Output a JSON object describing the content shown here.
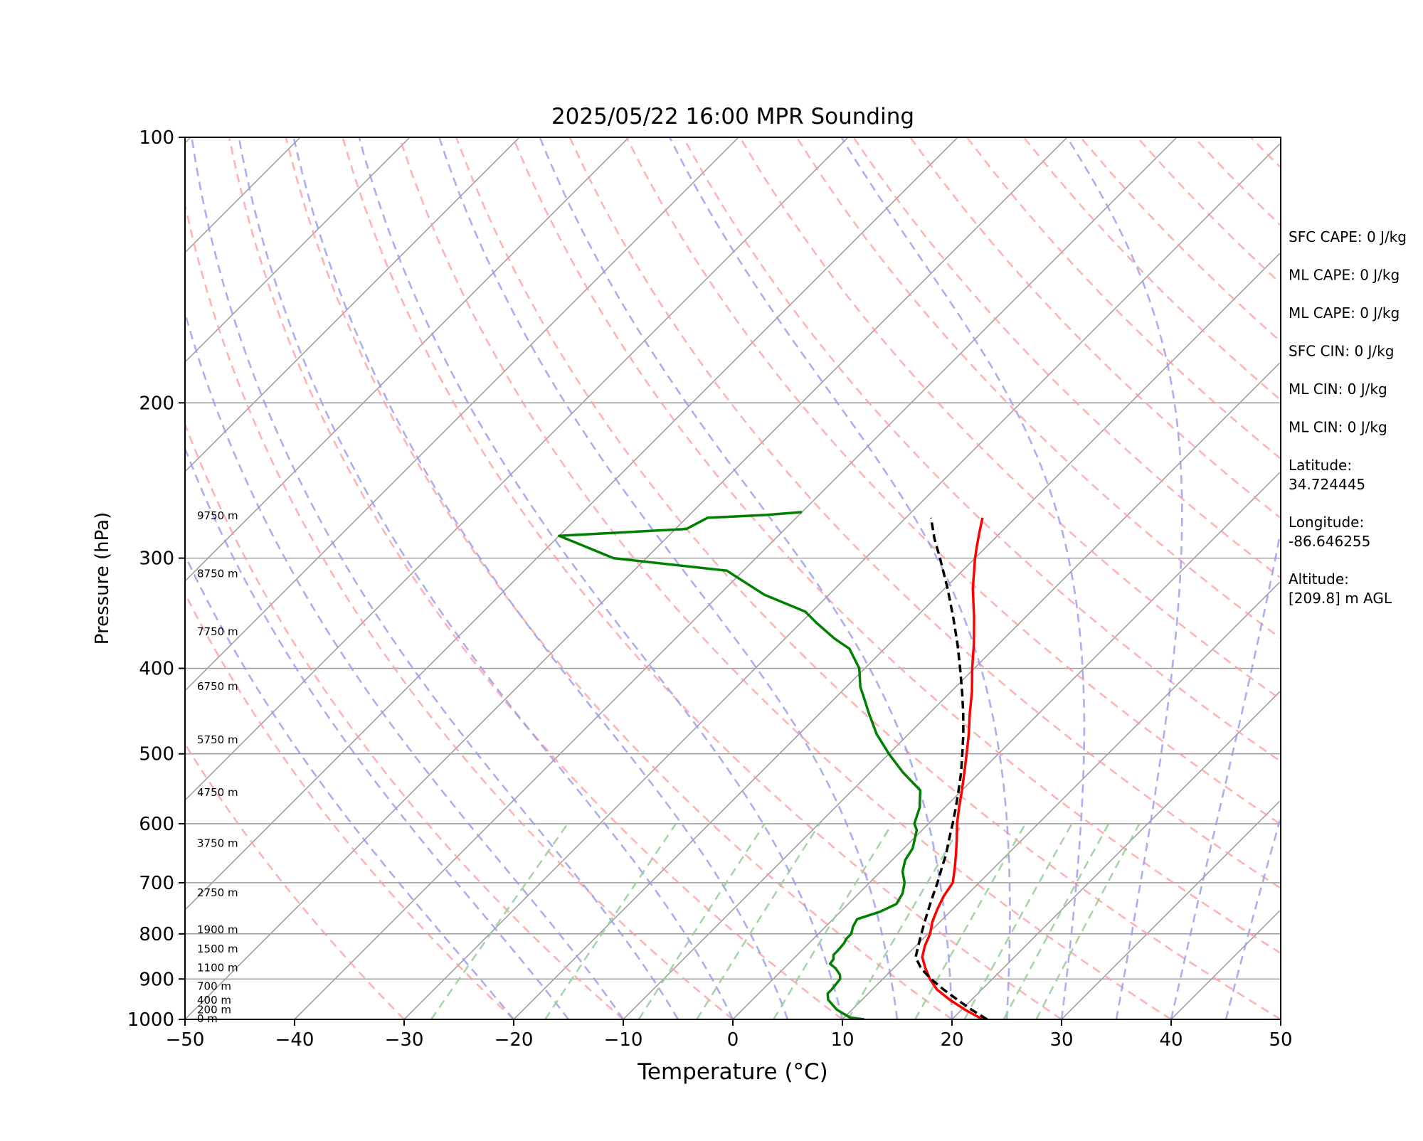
{
  "chart_data": {
    "type": "line",
    "title": "2025/05/22 16:00 MPR Sounding",
    "xlabel": "Temperature (°C)",
    "ylabel": "Pressure (hPa)",
    "xlim": [
      -50,
      50
    ],
    "ylim": [
      1000,
      100
    ],
    "yscale": "log",
    "skew": true,
    "x_ticks": [
      -50,
      -40,
      -30,
      -20,
      -10,
      0,
      10,
      20,
      30,
      40,
      50
    ],
    "y_ticks": [
      1000,
      900,
      800,
      700,
      600,
      500,
      400,
      300,
      200,
      100
    ],
    "x_tick_labels": [
      "−50",
      "−40",
      "−30",
      "−20",
      "−10",
      "0",
      "10",
      "20",
      "30",
      "40",
      "50"
    ],
    "y_tick_labels": [
      "1000",
      "900",
      "800",
      "700",
      "600",
      "500",
      "400",
      "300",
      "200",
      "100"
    ],
    "grid": true,
    "colors": {
      "temperature": "#ff0000",
      "dewpoint": "#008000",
      "parcel": "#000000",
      "dry_adiabats": "#ff9999",
      "moist_adiabats": "#9999ee",
      "mixing_ratio": "#99cc99",
      "isotherms": "#a0a0a0"
    },
    "series": [
      {
        "key": "temperature",
        "style": "solid",
        "points": [
          [
            1000,
            22.8
          ],
          [
            975,
            20.3
          ],
          [
            950,
            18.0
          ],
          [
            925,
            15.9
          ],
          [
            900,
            14.3
          ],
          [
            875,
            12.9
          ],
          [
            850,
            11.6
          ],
          [
            825,
            10.8
          ],
          [
            800,
            10.2
          ],
          [
            775,
            9.3
          ],
          [
            750,
            8.6
          ],
          [
            725,
            8.0
          ],
          [
            700,
            7.6
          ],
          [
            675,
            6.5
          ],
          [
            650,
            5.3
          ],
          [
            625,
            4.0
          ],
          [
            600,
            2.6
          ],
          [
            575,
            1.3
          ],
          [
            550,
            0.0
          ],
          [
            525,
            -1.4
          ],
          [
            500,
            -2.9
          ],
          [
            475,
            -4.5
          ],
          [
            450,
            -6.3
          ],
          [
            425,
            -8.1
          ],
          [
            400,
            -10.2
          ],
          [
            375,
            -12.3
          ],
          [
            350,
            -14.7
          ],
          [
            325,
            -17.4
          ],
          [
            300,
            -20.0
          ],
          [
            290,
            -21.0
          ],
          [
            280,
            -22.0
          ],
          [
            270,
            -23.0
          ]
        ]
      },
      {
        "key": "dewpoint",
        "style": "solid",
        "points": [
          [
            1000,
            12.0
          ],
          [
            995,
            10.5
          ],
          [
            975,
            8.6
          ],
          [
            950,
            6.9
          ],
          [
            935,
            6.3
          ],
          [
            925,
            6.3
          ],
          [
            900,
            6.1
          ],
          [
            890,
            5.7
          ],
          [
            875,
            4.7
          ],
          [
            865,
            3.8
          ],
          [
            855,
            3.7
          ],
          [
            845,
            3.3
          ],
          [
            835,
            3.3
          ],
          [
            820,
            3.2
          ],
          [
            810,
            3.0
          ],
          [
            800,
            3.0
          ],
          [
            785,
            2.5
          ],
          [
            770,
            2.2
          ],
          [
            755,
            3.6
          ],
          [
            740,
            4.4
          ],
          [
            720,
            4.0
          ],
          [
            700,
            3.2
          ],
          [
            680,
            2.0
          ],
          [
            660,
            1.2
          ],
          [
            640,
            0.8
          ],
          [
            610,
            -0.5
          ],
          [
            600,
            -1.3
          ],
          [
            575,
            -2.3
          ],
          [
            550,
            -3.8
          ],
          [
            525,
            -7.0
          ],
          [
            500,
            -10.0
          ],
          [
            475,
            -12.9
          ],
          [
            450,
            -15.5
          ],
          [
            430,
            -17.6
          ],
          [
            420,
            -18.7
          ],
          [
            400,
            -20.5
          ],
          [
            380,
            -23.2
          ],
          [
            370,
            -25.5
          ],
          [
            355,
            -28.6
          ],
          [
            345,
            -30.6
          ],
          [
            330,
            -35.9
          ],
          [
            310,
            -41.5
          ],
          [
            300,
            -53.0
          ],
          [
            283,
            -60.0
          ],
          [
            278,
            -49.0
          ],
          [
            270,
            -48.1
          ],
          [
            268,
            -43.0
          ],
          [
            266,
            -40.0
          ]
        ]
      },
      {
        "key": "parcel",
        "style": "dashed",
        "points": [
          [
            1000,
            23.2
          ],
          [
            975,
            20.9
          ],
          [
            950,
            18.7
          ],
          [
            925,
            16.5
          ],
          [
            900,
            14.4
          ],
          [
            875,
            12.5
          ],
          [
            850,
            11.0
          ],
          [
            825,
            10.2
          ],
          [
            800,
            9.4
          ],
          [
            775,
            8.6
          ],
          [
            750,
            7.8
          ],
          [
            725,
            7.0
          ],
          [
            700,
            6.2
          ],
          [
            675,
            5.3
          ],
          [
            650,
            4.4
          ],
          [
            625,
            3.3
          ],
          [
            600,
            2.2
          ],
          [
            575,
            1.0
          ],
          [
            550,
            -0.3
          ],
          [
            525,
            -1.7
          ],
          [
            500,
            -3.3
          ],
          [
            475,
            -5.0
          ],
          [
            450,
            -6.9
          ],
          [
            425,
            -9.0
          ],
          [
            400,
            -11.3
          ],
          [
            375,
            -13.8
          ],
          [
            350,
            -16.6
          ],
          [
            325,
            -19.7
          ],
          [
            300,
            -23.2
          ],
          [
            285,
            -25.5
          ],
          [
            270,
            -27.7
          ]
        ]
      }
    ],
    "height_labels": [
      "0 m",
      "200 m",
      "400 m",
      "700 m",
      "1100 m",
      "1500 m",
      "1900 m",
      "2750 m",
      "3750 m",
      "4750 m",
      "5750 m",
      "6750 m",
      "7750 m",
      "8750 m",
      "9750 m"
    ],
    "height_label_pressures": [
      1000,
      977,
      953,
      919,
      876,
      834,
      793,
      720,
      633,
      554,
      483,
      420,
      364,
      313,
      269
    ],
    "annotations": [
      "SFC CAPE: 0 J/kg",
      "ML CAPE: 0 J/kg",
      "ML CAPE: 0 J/kg",
      "SFC CIN: 0 J/kg",
      "ML CIN: 0 J/kg",
      "ML CIN: 0 J/kg",
      "Latitude:",
      "34.724445",
      "Longitude:",
      "-86.646255",
      "Altitude:",
      "[209.8] m AGL"
    ]
  }
}
